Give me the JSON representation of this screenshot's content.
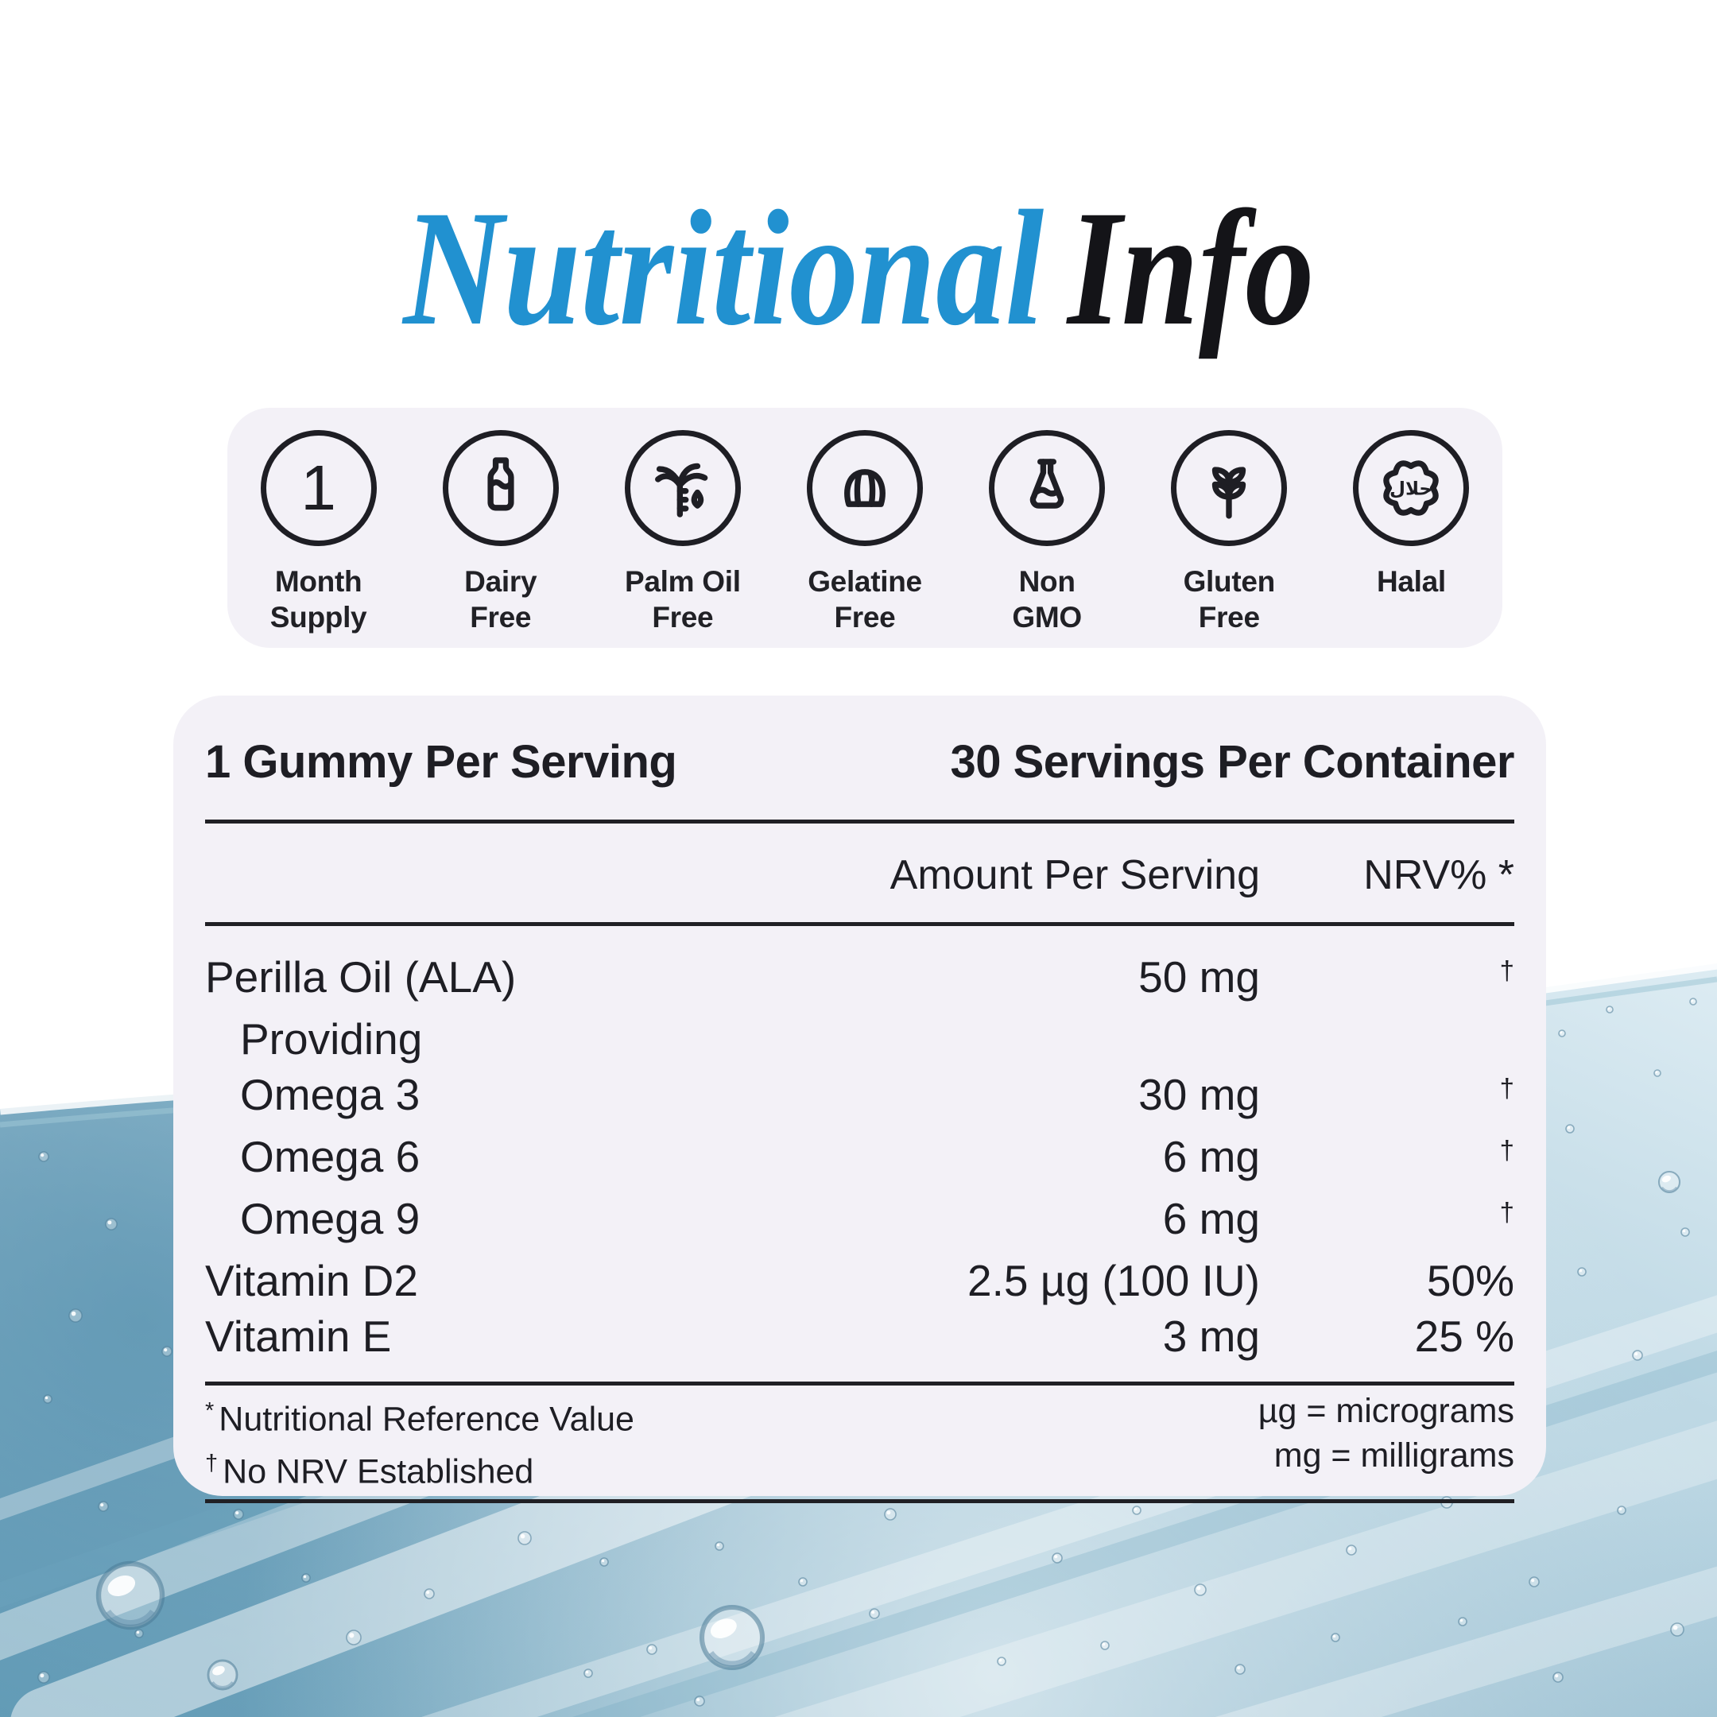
{
  "title": {
    "word_blue": "Nutritional",
    "word_dark": "Info"
  },
  "colors": {
    "accent_blue": "#2191d0",
    "ink": "#1e1e24",
    "panel_bg": "#f3f1f7",
    "water_deep": "#679fb9",
    "water_light": "#ddecf3"
  },
  "badges": [
    {
      "icon": "month-supply-icon",
      "lines": [
        "Month",
        "Supply"
      ]
    },
    {
      "icon": "dairy-free-icon",
      "lines": [
        "Dairy",
        "Free"
      ]
    },
    {
      "icon": "palm-oil-free-icon",
      "lines": [
        "Palm Oil",
        "Free"
      ]
    },
    {
      "icon": "gelatine-free-icon",
      "lines": [
        "Gelatine",
        "Free"
      ]
    },
    {
      "icon": "non-gmo-icon",
      "lines": [
        "Non",
        "GMO"
      ]
    },
    {
      "icon": "gluten-free-icon",
      "lines": [
        "Gluten",
        "Free"
      ]
    },
    {
      "icon": "halal-icon",
      "lines": [
        "Halal"
      ]
    }
  ],
  "month_supply_number": "1",
  "halal_arabic": "حلال",
  "panel": {
    "serving_left": "1 Gummy Per Serving",
    "serving_right": "30 Servings Per Container",
    "columns": {
      "amount": "Amount Per Serving",
      "nrv": "NRV% *"
    },
    "rows": [
      {
        "name": "Perilla Oil (ALA)",
        "amount": "50 mg",
        "nrv": "†",
        "indent": false
      },
      {
        "name": "Providing",
        "amount": "",
        "nrv": "",
        "indent": true
      },
      {
        "name": "Omega 3",
        "amount": "30 mg",
        "nrv": "†",
        "indent": true
      },
      {
        "name": "Omega 6",
        "amount": "6 mg",
        "nrv": "†",
        "indent": true
      },
      {
        "name": "Omega 9",
        "amount": "6 mg",
        "nrv": "†",
        "indent": true
      },
      {
        "name": "Vitamin D2",
        "amount": "2.5 µg (100 IU)",
        "nrv": "50%",
        "indent": false
      },
      {
        "name": "Vitamin E",
        "amount": "3 mg",
        "nrv": "25 %",
        "indent": false
      }
    ],
    "footnotes_left": [
      {
        "marker": "*",
        "text": "Nutritional Reference Value"
      },
      {
        "marker": "†",
        "text": "No NRV Established"
      }
    ],
    "footnotes_right": [
      "µg = micrograms",
      "mg = milligrams"
    ]
  }
}
